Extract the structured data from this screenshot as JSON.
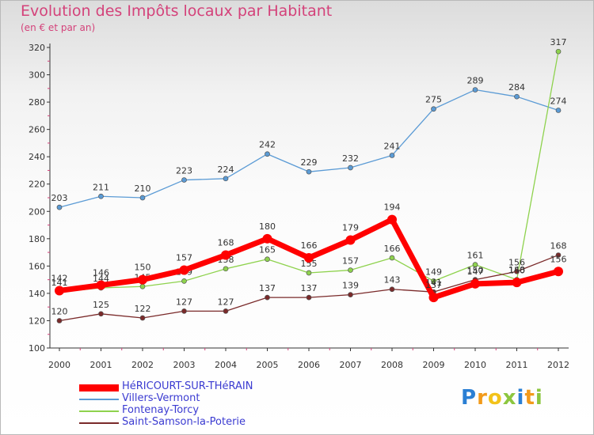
{
  "chart_data": {
    "type": "line",
    "title": "Evolution des Impôts locaux par Habitant",
    "subtitle": "(en € et par an)",
    "xlabel": "",
    "ylabel": "",
    "ylim": [
      100,
      320
    ],
    "yticks": [
      100,
      120,
      140,
      160,
      180,
      200,
      220,
      240,
      260,
      280,
      300,
      320
    ],
    "categories": [
      "2000",
      "2001",
      "2002",
      "2003",
      "2004",
      "2005",
      "2006",
      "2007",
      "2008",
      "2009",
      "2010",
      "2011",
      "2012"
    ],
    "series": [
      {
        "name": "Villers-Vermont",
        "color": "#5b9bd5",
        "values": [
          203,
          211,
          210,
          223,
          224,
          242,
          229,
          232,
          241,
          275,
          289,
          284,
          274
        ]
      },
      {
        "name": "Fontenay-Torcy",
        "color": "#8ed24d",
        "values": [
          141,
          144,
          145,
          149,
          158,
          165,
          155,
          157,
          166,
          149,
          161,
          150,
          317
        ]
      },
      {
        "name": "Saint-Samson-la-Poterie",
        "color": "#7a2a2a",
        "values": [
          120,
          125,
          122,
          127,
          127,
          137,
          137,
          139,
          143,
          141,
          150,
          156,
          168
        ]
      },
      {
        "name": "HéRICOURT-SUR-THéRAIN",
        "color": "#ff0000",
        "values": [
          142,
          146,
          150,
          157,
          168,
          180,
          166,
          179,
          194,
          137,
          147,
          148,
          156
        ]
      }
    ],
    "legend_order": [
      "HéRICOURT-SUR-THéRAIN",
      "Villers-Vermont",
      "Fontenay-Torcy",
      "Saint-Samson-la-Poterie"
    ],
    "legend_position": "bottom-left",
    "grid": false
  },
  "logo": {
    "text": "Proxiti",
    "colors": [
      "#2a7fd4",
      "#f29a1a",
      "#f2c21a",
      "#8cc63f",
      "#2a7fd4",
      "#f29a1a",
      "#8cc63f"
    ]
  }
}
